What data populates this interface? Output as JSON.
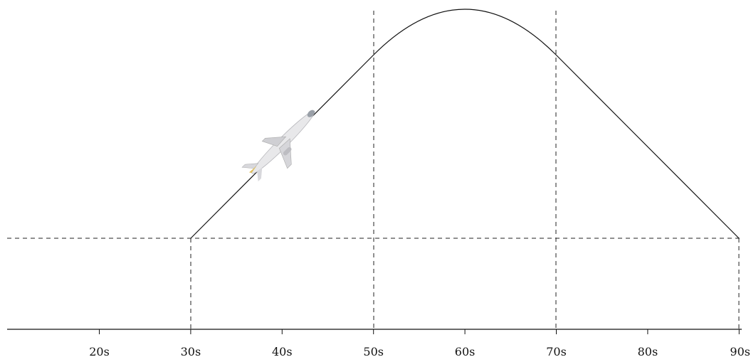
{
  "axis": {
    "ticks": [
      "20s",
      "30s",
      "40s",
      "50s",
      "60s",
      "70s",
      "80s",
      "90s"
    ]
  }
}
